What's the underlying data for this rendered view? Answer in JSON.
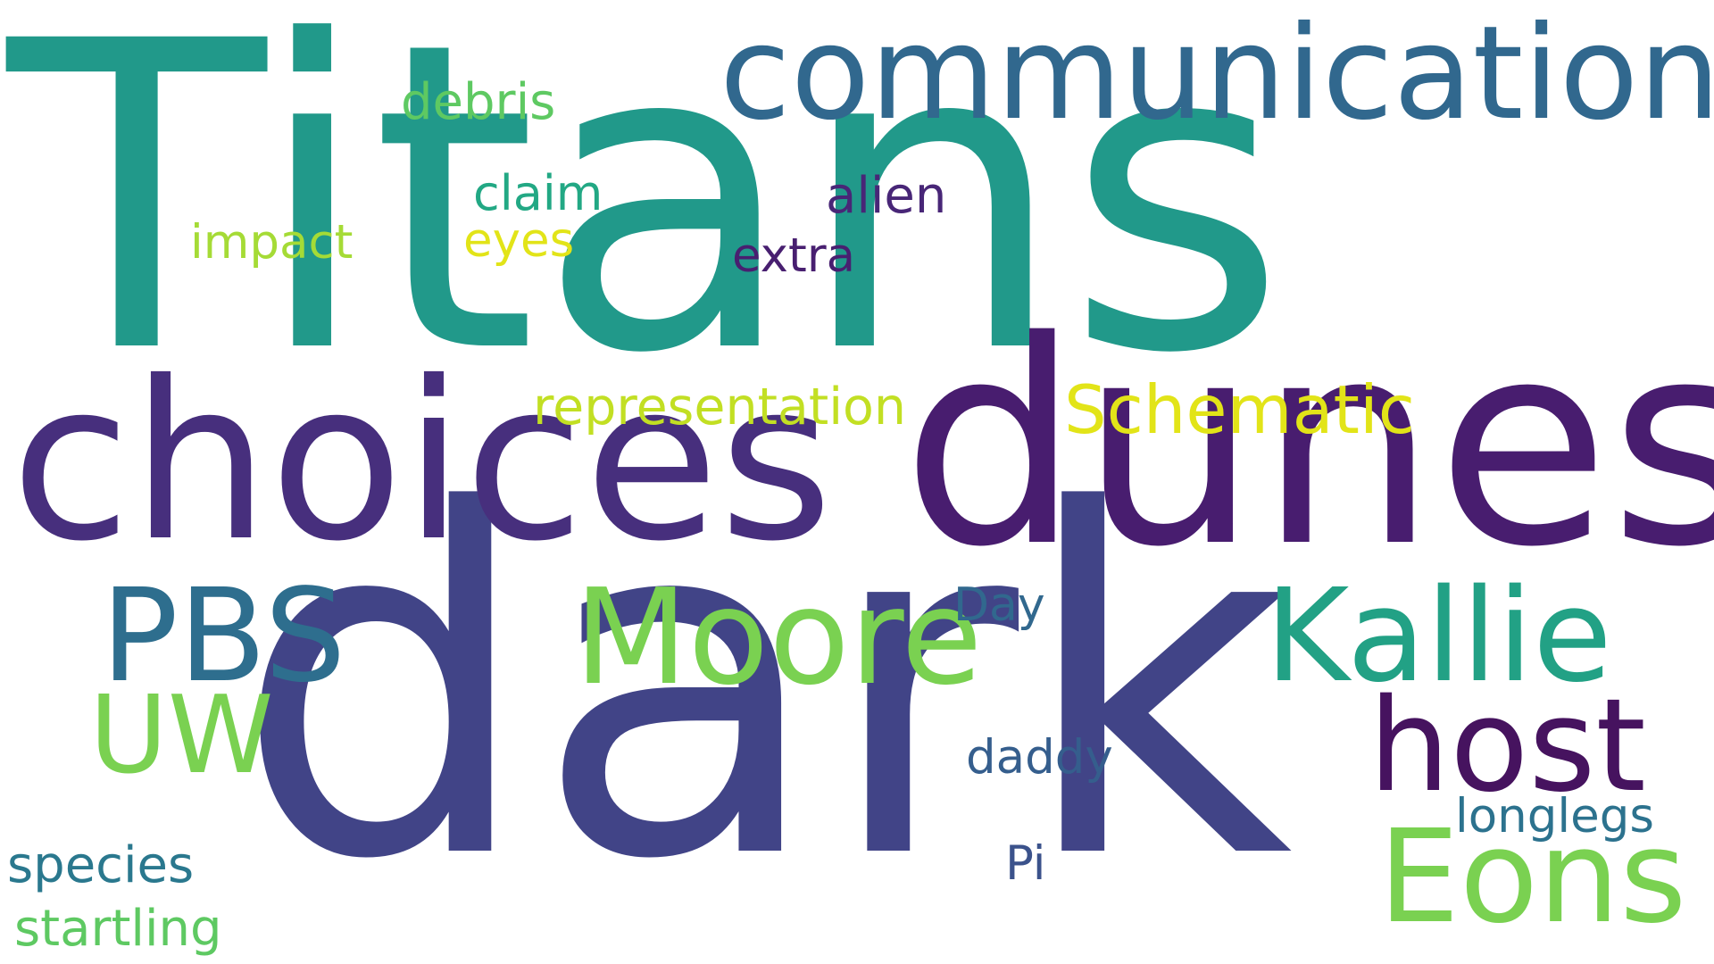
{
  "word_cloud": {
    "words": [
      {
        "text": "Titans",
        "color": "#21998A"
      },
      {
        "text": "dark",
        "color": "#414487"
      },
      {
        "text": "choices",
        "color": "#472F7D"
      },
      {
        "text": "dunes",
        "color": "#481D6F"
      },
      {
        "text": "communication",
        "color": "#31688E"
      },
      {
        "text": "Kallie",
        "color": "#22A185"
      },
      {
        "text": "Moore",
        "color": "#7AD151"
      },
      {
        "text": "Eons",
        "color": "#7AD151"
      },
      {
        "text": "host",
        "color": "#46135F"
      },
      {
        "text": "PBS",
        "color": "#2E6E8E"
      },
      {
        "text": "UW",
        "color": "#7AD151"
      },
      {
        "text": "Schematic",
        "color": "#E2E418"
      },
      {
        "text": "representation",
        "color": "#C2DF23"
      },
      {
        "text": "debris",
        "color": "#5EC962"
      },
      {
        "text": "claim",
        "color": "#22A884"
      },
      {
        "text": "impact",
        "color": "#A5DB36"
      },
      {
        "text": "eyes",
        "color": "#E2E418"
      },
      {
        "text": "alien",
        "color": "#482677"
      },
      {
        "text": "extra",
        "color": "#481F70"
      },
      {
        "text": "Day",
        "color": "#31688E"
      },
      {
        "text": "daddy",
        "color": "#355E8D"
      },
      {
        "text": "longlegs",
        "color": "#2C728E"
      },
      {
        "text": "Pi",
        "color": "#3B528B"
      },
      {
        "text": "species",
        "color": "#2A788E"
      },
      {
        "text": "startling",
        "color": "#5EC962"
      }
    ]
  }
}
